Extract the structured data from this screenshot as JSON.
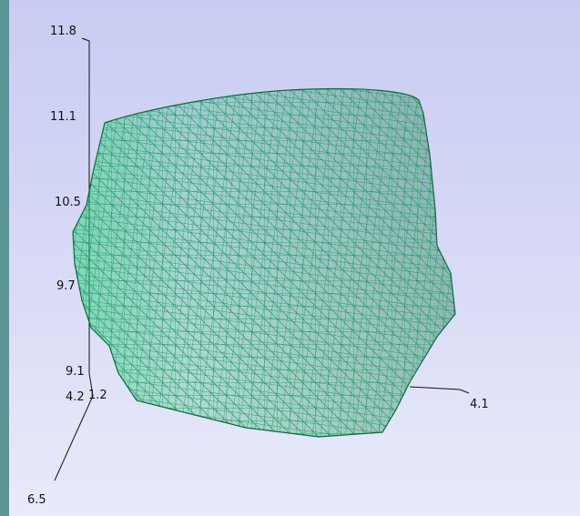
{
  "scene": {
    "background_top": "#c9cbf2",
    "background_bottom": "#e9ebfb",
    "mesh_color": "#1fb86a",
    "mesh_dark": "#0b6b3c",
    "axis_color": "#111111"
  },
  "axes": {
    "z_ticks": [
      "11.8",
      "11.1",
      "10.5",
      "9.7",
      "9.1"
    ],
    "x_ticks": [
      "4.2",
      "4.1"
    ],
    "y_ticks": [
      "1.2",
      "6.5"
    ]
  }
}
